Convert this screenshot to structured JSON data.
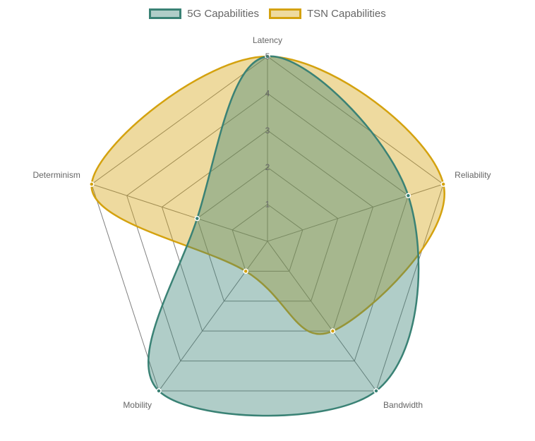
{
  "chart_data": {
    "type": "radar",
    "categories": [
      "Latency",
      "Reliability",
      "Bandwidth",
      "Mobility",
      "Determinism"
    ],
    "ticks": [
      "1",
      "2",
      "3",
      "4",
      "5"
    ],
    "rlim": [
      0,
      5
    ],
    "legend_position": "top",
    "series": [
      {
        "name": "5G Capabilities",
        "values": [
          5,
          4,
          5,
          5,
          2
        ],
        "border_color": "#3a8275",
        "fill_color": "#3a8275"
      },
      {
        "name": "TSN Capabilities",
        "values": [
          5,
          5,
          3,
          1,
          5
        ],
        "border_color": "#d4a20f",
        "fill_color": "#d4a20f"
      }
    ],
    "grid_color": "#808080"
  }
}
